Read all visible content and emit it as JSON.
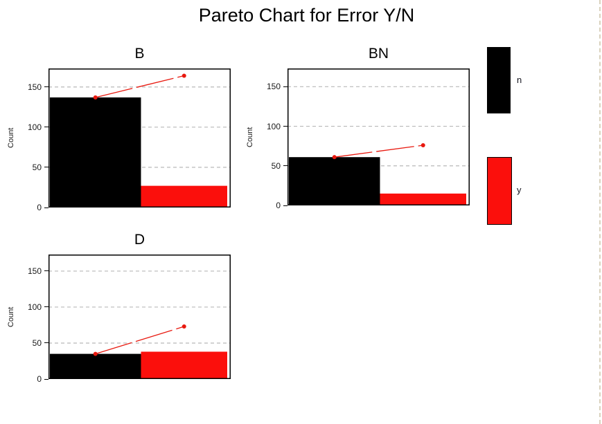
{
  "page": {
    "title": "Pareto Chart for Error Y/N"
  },
  "chart_data": [
    {
      "type": "bar",
      "title": "B",
      "ylabel": "Count",
      "categories": [
        "n",
        "y"
      ],
      "values": [
        137,
        27
      ],
      "cumulative": [
        137,
        164
      ],
      "yticks": [
        0,
        50,
        100,
        150
      ],
      "ylim": [
        0,
        173
      ],
      "grid": "horizontal-dashed",
      "legend_position": "right",
      "bar_colors": [
        "#000000",
        "#fb0f0c"
      ],
      "line_color": "#e8190f"
    },
    {
      "type": "bar",
      "title": "BN",
      "ylabel": "Count",
      "categories": [
        "n",
        "y"
      ],
      "values": [
        61,
        15
      ],
      "cumulative": [
        61,
        76
      ],
      "yticks": [
        0,
        50,
        100,
        150
      ],
      "ylim": [
        0,
        173
      ],
      "grid": "horizontal-dashed",
      "legend_position": "right",
      "bar_colors": [
        "#000000",
        "#fb0f0c"
      ],
      "line_color": "#e8190f"
    },
    {
      "type": "bar",
      "title": "D",
      "ylabel": "Count",
      "categories": [
        "n",
        "y"
      ],
      "values": [
        35,
        38
      ],
      "cumulative": [
        35,
        73
      ],
      "yticks": [
        0,
        50,
        100,
        150
      ],
      "ylim": [
        0,
        173
      ],
      "grid": "horizontal-dashed",
      "legend_position": "right",
      "bar_colors": [
        "#000000",
        "#fb0f0c"
      ],
      "line_color": "#e8190f"
    }
  ],
  "legend": {
    "items": [
      {
        "label": "n",
        "color": "#000000"
      },
      {
        "label": "y",
        "color": "#fb0f0c"
      }
    ]
  },
  "colors": {
    "gridline": "#b8b8b8",
    "frame": "#000000",
    "tick_text": "#1a1a1a",
    "page_break": "#d9d2bd"
  }
}
